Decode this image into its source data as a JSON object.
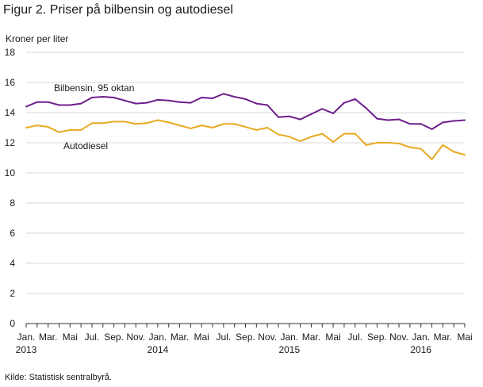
{
  "figure_title": "Figur 2. Priser på bilbensin og autodiesel",
  "source": "Kilde: Statistisk sentralbyrå.",
  "colors": {
    "bensin": "#6e1e8c",
    "diesel": "#e8aa23",
    "grid": "#d9d9d9",
    "axis": "#333333",
    "text": "#1a1a1a"
  },
  "chart_data": {
    "type": "line",
    "title": "",
    "ylabel": "Kroner per liter",
    "xlabel": "",
    "ylim": [
      0,
      18
    ],
    "yticks": [
      "0",
      "2",
      "4",
      "6",
      "8",
      "10",
      "12",
      "14",
      "16",
      "18"
    ],
    "grid": true,
    "x_tick_labels": [
      "Jan.",
      "Mar.",
      "Mai",
      "Jul.",
      "Sep.",
      "Nov.",
      "Jan.",
      "Mar.",
      "Mai",
      "Jul.",
      "Sep.",
      "Nov.",
      "Jan.",
      "Mar.",
      "Mai",
      "Jul.",
      "Sep.",
      "Nov.",
      "Jan.",
      "Mar.",
      "Mai"
    ],
    "x_year_labels": [
      "2013",
      "2014",
      "2015",
      "2016"
    ],
    "months": [
      "2013-01",
      "2013-02",
      "2013-03",
      "2013-04",
      "2013-05",
      "2013-06",
      "2013-07",
      "2013-08",
      "2013-09",
      "2013-10",
      "2013-11",
      "2013-12",
      "2014-01",
      "2014-02",
      "2014-03",
      "2014-04",
      "2014-05",
      "2014-06",
      "2014-07",
      "2014-08",
      "2014-09",
      "2014-10",
      "2014-11",
      "2014-12",
      "2015-01",
      "2015-02",
      "2015-03",
      "2015-04",
      "2015-05",
      "2015-06",
      "2015-07",
      "2015-08",
      "2015-09",
      "2015-10",
      "2015-11",
      "2015-12",
      "2016-01",
      "2016-02",
      "2016-03",
      "2016-04",
      "2016-05"
    ],
    "series": [
      {
        "name": "Bilbensin, 95 oktan",
        "values": [
          14.4,
          14.7,
          14.7,
          14.5,
          14.5,
          14.6,
          15.0,
          15.05,
          15.0,
          14.8,
          14.6,
          14.65,
          14.85,
          14.8,
          14.7,
          14.65,
          15.0,
          14.95,
          15.25,
          15.05,
          14.9,
          14.6,
          14.5,
          13.7,
          13.75,
          13.55,
          13.9,
          14.25,
          13.95,
          14.65,
          14.9,
          14.3,
          13.6,
          13.5,
          13.55,
          13.25,
          13.25,
          12.9,
          13.35,
          13.45,
          13.5
        ]
      },
      {
        "name": "Autodiesel",
        "values": [
          13.0,
          13.15,
          13.05,
          12.7,
          12.85,
          12.85,
          13.3,
          13.3,
          13.4,
          13.4,
          13.25,
          13.3,
          13.5,
          13.35,
          13.15,
          12.95,
          13.15,
          13.0,
          13.25,
          13.25,
          13.05,
          12.85,
          13.0,
          12.55,
          12.4,
          12.1,
          12.4,
          12.6,
          12.05,
          12.6,
          12.6,
          11.85,
          12.0,
          12.0,
          11.95,
          11.7,
          11.6,
          10.9,
          11.85,
          11.4,
          11.2
        ]
      }
    ]
  }
}
